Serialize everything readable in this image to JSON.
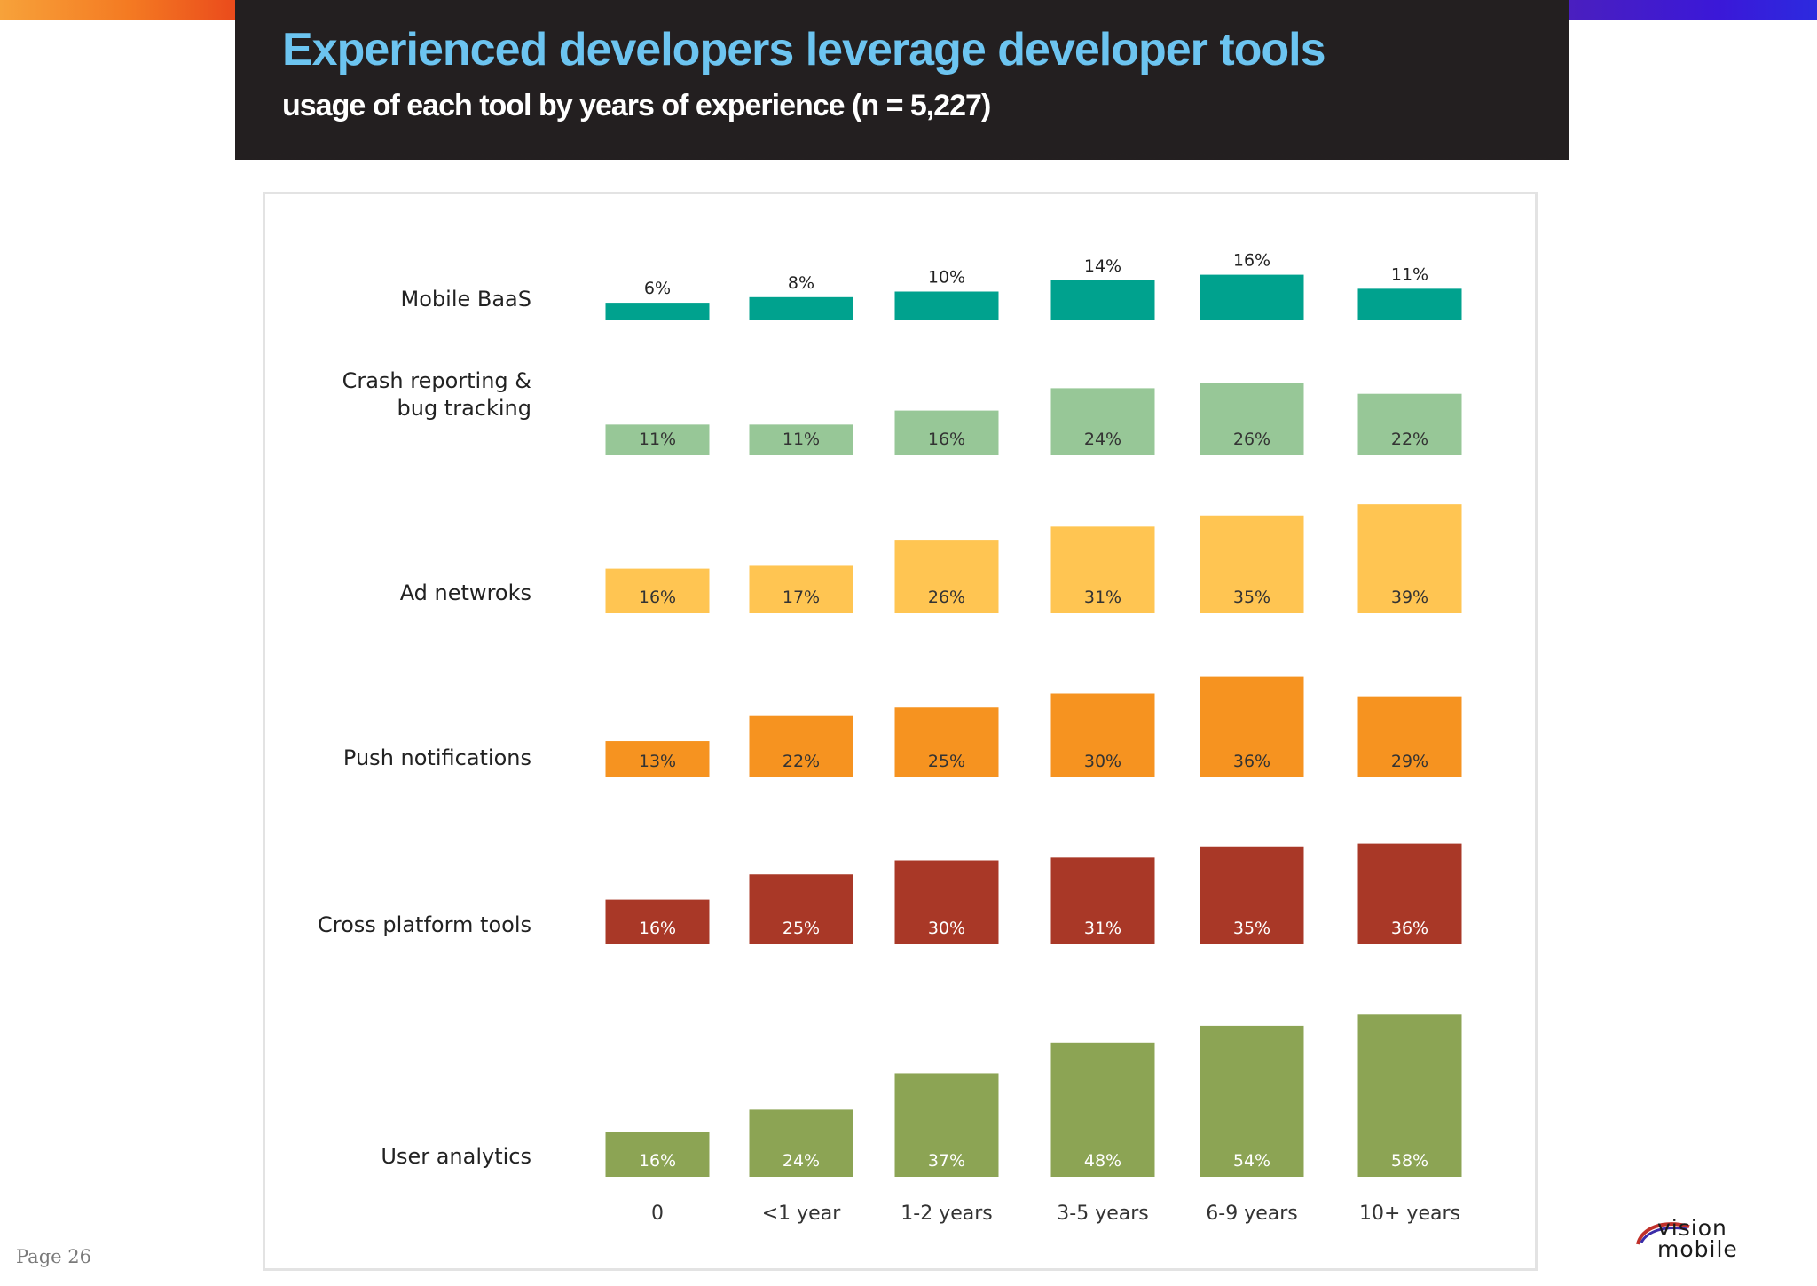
{
  "header": {
    "title": "Experienced developers leverage developer tools",
    "subtitle": "usage of each tool by years of experience (n = 5,227)"
  },
  "footer": {
    "page_label": "Page 26",
    "logo_line1": "vision",
    "logo_line2": "mobile"
  },
  "chart_data": {
    "type": "bar",
    "title": "Experienced developers leverage developer tools",
    "subtitle": "usage of each tool by years of experience (n = 5,227)",
    "categories": [
      "0",
      "<1 year",
      "1-2 years",
      "3-5 years",
      "6-9 years",
      "10+ years"
    ],
    "value_unit": "%",
    "series": [
      {
        "name": "Mobile BaaS",
        "name_lines": [
          "Mobile BaaS"
        ],
        "color": "#00a28e",
        "label_color": "#222222",
        "label_position": "above",
        "values": [
          6,
          8,
          10,
          14,
          16,
          11
        ]
      },
      {
        "name": "Crash reporting & bug tracking",
        "name_lines": [
          "Crash reporting &",
          "bug tracking"
        ],
        "color": "#97c797",
        "label_color": "#333333",
        "label_position": "inside",
        "values": [
          11,
          11,
          16,
          24,
          26,
          22
        ]
      },
      {
        "name": "Ad netwroks",
        "name_lines": [
          "Ad netwroks"
        ],
        "color": "#ffc552",
        "label_color": "#333333",
        "label_position": "inside",
        "values": [
          16,
          17,
          26,
          31,
          35,
          39
        ]
      },
      {
        "name": "Push notifications",
        "name_lines": [
          "Push notifications"
        ],
        "color": "#f69320",
        "label_color": "#333333",
        "label_position": "inside",
        "values": [
          13,
          22,
          25,
          30,
          36,
          29
        ]
      },
      {
        "name": "Cross platform tools",
        "name_lines": [
          "Cross platform tools"
        ],
        "color": "#a93827",
        "label_color": "#ffffff",
        "label_position": "inside",
        "values": [
          16,
          25,
          30,
          31,
          35,
          36
        ]
      },
      {
        "name": "User analytics",
        "name_lines": [
          "User analytics"
        ],
        "color": "#8ca454",
        "label_color": "#ffffff",
        "label_position": "inside",
        "values": [
          16,
          24,
          37,
          48,
          54,
          58
        ]
      }
    ]
  }
}
